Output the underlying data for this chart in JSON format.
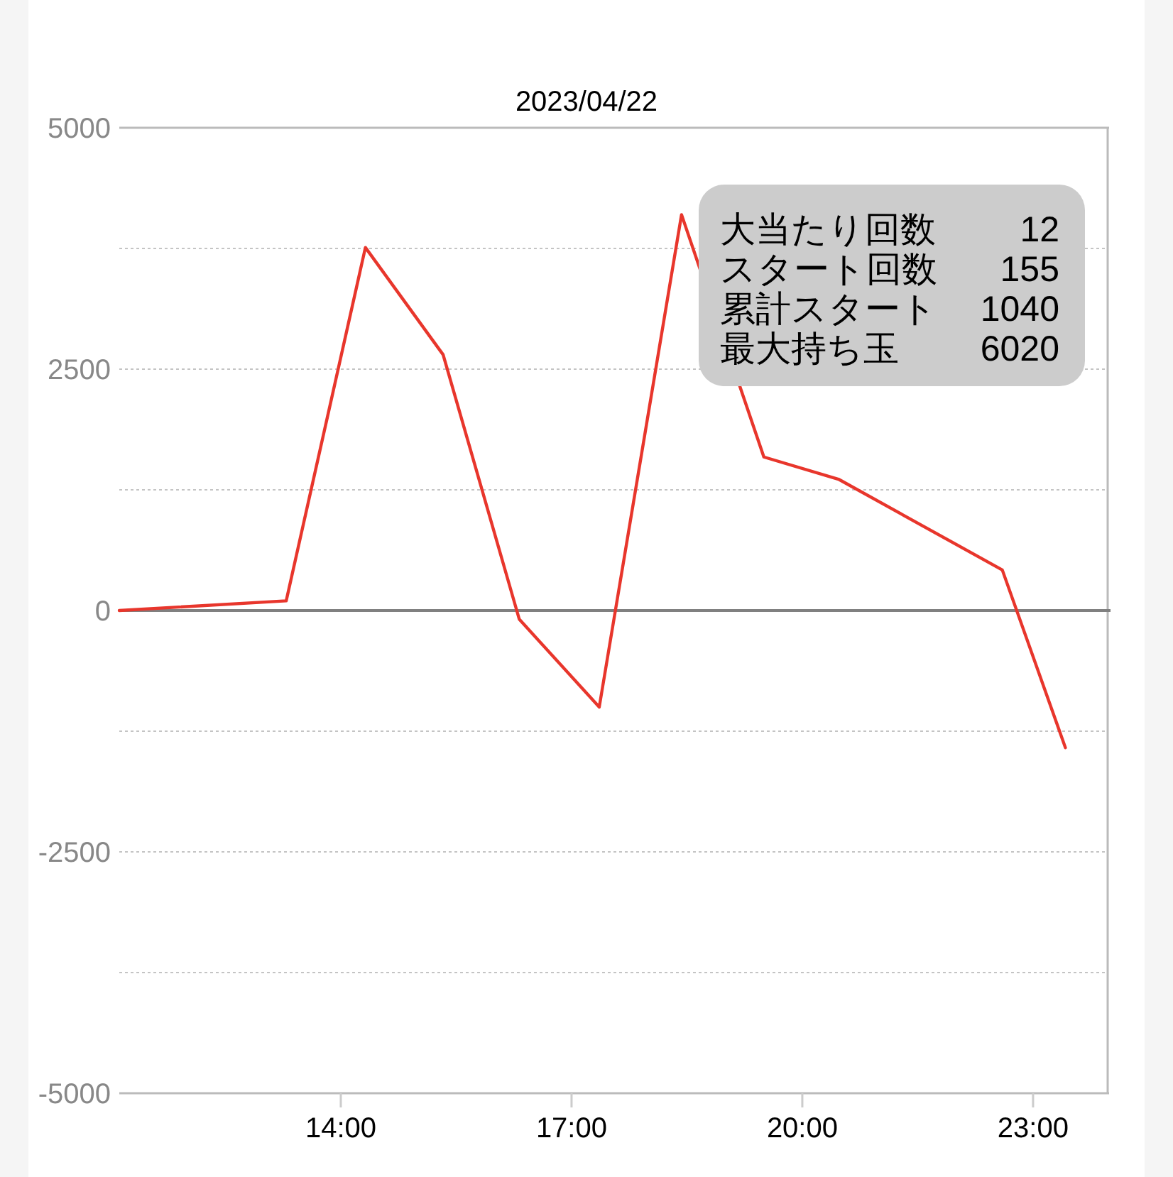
{
  "chart_data": {
    "type": "line",
    "title": "2023/04/22",
    "x": [
      11.12,
      13.29,
      14.32,
      15.33,
      16.32,
      17.36,
      18.43,
      19.5,
      20.47,
      22.6,
      23.42
    ],
    "series": [
      {
        "color": "#e8362c",
        "values": [
          0,
          100,
          3760,
          2650,
          -90,
          -1000,
          4100,
          1590,
          1360,
          420,
          -1420
        ]
      }
    ],
    "xlim": [
      11.12,
      23.97
    ],
    "xticks": [
      {
        "value": 14,
        "label": "14:00"
      },
      {
        "value": 17,
        "label": "17:00"
      },
      {
        "value": 20,
        "label": "20:00"
      },
      {
        "value": 23,
        "label": "23:00"
      }
    ],
    "ylim": [
      -5000,
      5000
    ],
    "yticks": [
      -5000,
      {
        "value": -3750,
        "label": null
      },
      -2500,
      {
        "value": -1250,
        "label": null
      },
      0,
      {
        "value": 1250,
        "label": null
      },
      2500,
      {
        "value": 3750,
        "label": null
      },
      5000
    ],
    "grid": "y",
    "ref_lines": [
      {
        "axis": "y",
        "value": 0,
        "color": "#808080"
      }
    ],
    "annotations": [
      "大当たり回数",
      "12",
      "スタート回数",
      "155",
      "累計スタート",
      "1040",
      "最大持ち玉",
      "6020"
    ]
  }
}
